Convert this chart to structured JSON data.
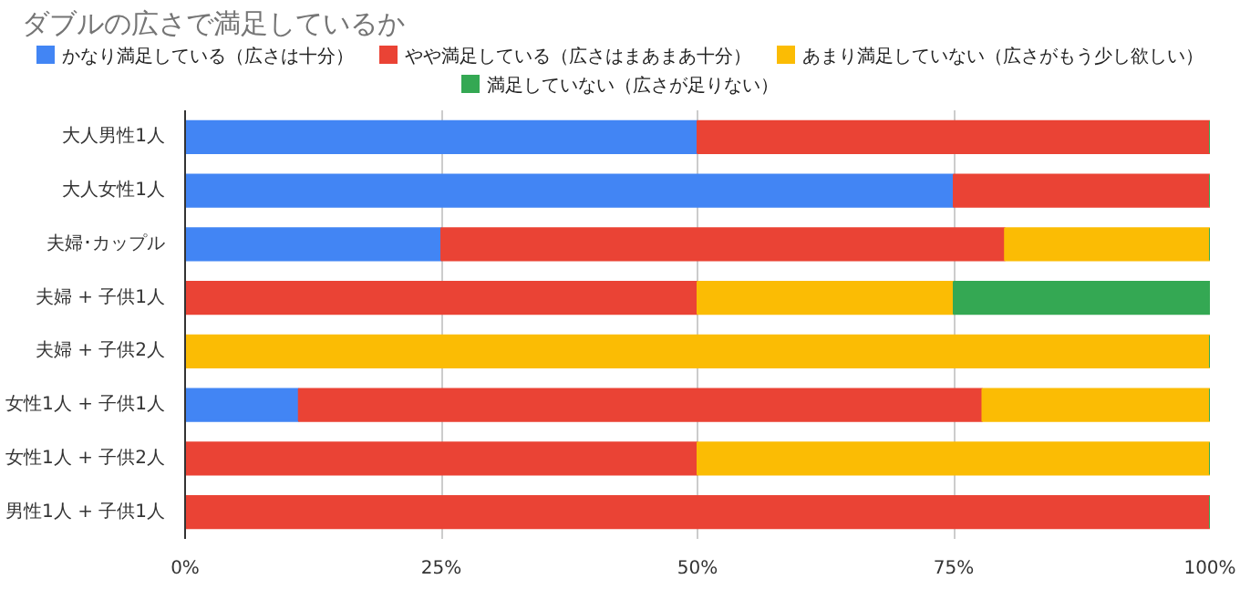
{
  "chart_data": {
    "type": "bar",
    "orientation": "horizontal",
    "stacked": true,
    "title": "ダブルの広さで満足しているか",
    "categories": [
      "大人男性1人",
      "大人女性1人",
      "夫婦･カップル",
      "夫婦 + 子供1人",
      "夫婦 + 子供2人",
      "女性1人 + 子供1人",
      "女性1人 + 子供2人",
      "男性1人 + 子供1人"
    ],
    "series": [
      {
        "name": "かなり満足している（広さは十分）",
        "color": "#4285f4",
        "values": [
          50,
          75,
          25,
          0,
          0,
          11.1,
          0,
          0
        ]
      },
      {
        "name": "やや満足している（広さはまあまあ十分）",
        "color": "#ea4335",
        "values": [
          50,
          25,
          55,
          50,
          0,
          66.7,
          50,
          100
        ]
      },
      {
        "name": "あまり満足していない（広さがもう少し欲しい）",
        "color": "#fbbc04",
        "values": [
          0,
          0,
          20,
          25,
          100,
          22.2,
          50,
          0
        ]
      },
      {
        "name": "満足していない（広さが足りない）",
        "color": "#34a853",
        "values": [
          0,
          0,
          0,
          25,
          0,
          0,
          0,
          0
        ]
      }
    ],
    "xlim": [
      0,
      100
    ],
    "xticks": [
      {
        "value": 0,
        "label": "0%"
      },
      {
        "value": 25,
        "label": "25%"
      },
      {
        "value": 50,
        "label": "50%"
      },
      {
        "value": 75,
        "label": "75%"
      },
      {
        "value": 100,
        "label": "100%"
      }
    ],
    "grid": "x",
    "legend": "top"
  }
}
